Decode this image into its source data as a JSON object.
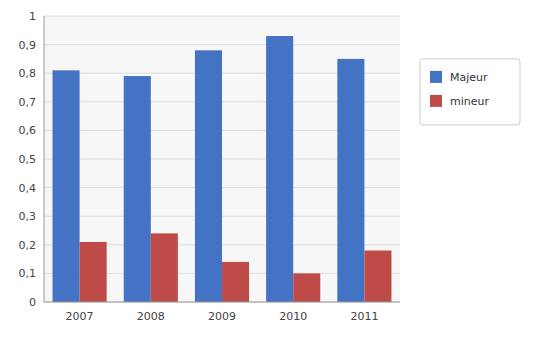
{
  "chart_data": {
    "type": "bar",
    "categories": [
      "2007",
      "2008",
      "2009",
      "2010",
      "2011"
    ],
    "series": [
      {
        "name": "Majeur",
        "color": "#4472C4",
        "values": [
          0.81,
          0.79,
          0.88,
          0.93,
          0.85
        ]
      },
      {
        "name": "mineur",
        "color": "#BE4B48",
        "values": [
          0.21,
          0.24,
          0.14,
          0.1,
          0.18
        ]
      }
    ],
    "ylim": [
      0,
      1.0
    ],
    "yticks": [
      0,
      {
        "value": 0.1,
        "label": "0,1"
      },
      {
        "value": 0.2,
        "label": "0,2"
      },
      {
        "value": 0.3,
        "label": "0,3"
      },
      {
        "value": 0.4,
        "label": "0,4"
      },
      {
        "value": 0.5,
        "label": "0,5"
      },
      {
        "value": 0.6,
        "label": "0,6"
      },
      {
        "value": 0.7,
        "label": "0,7"
      },
      {
        "value": 0.8,
        "label": "0,8"
      },
      {
        "value": 0.9,
        "label": "0,9"
      },
      1
    ],
    "grid": true,
    "legend": "right"
  }
}
